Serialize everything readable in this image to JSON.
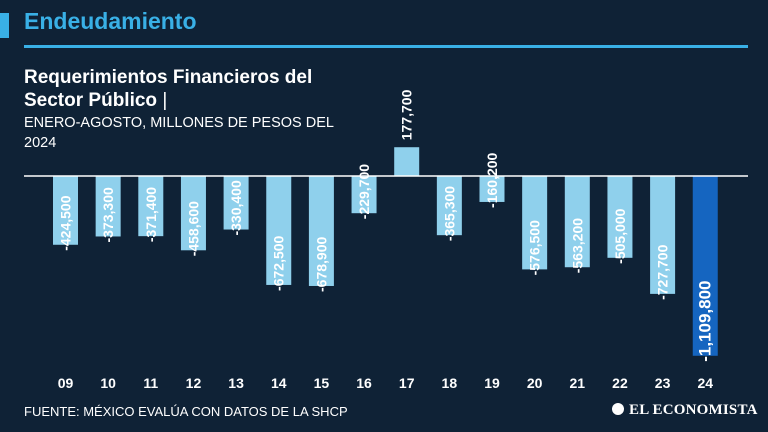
{
  "header": {
    "section_title": "Endeudamiento"
  },
  "chart_data": {
    "type": "bar",
    "title": "Requerimientos Financieros del Sector Público",
    "title_separator": "|",
    "subtitle": "ENERO-AGOSTO, MILLONES DE PESOS DEL 2024",
    "categories": [
      "09",
      "10",
      "11",
      "12",
      "13",
      "14",
      "15",
      "16",
      "17",
      "18",
      "19",
      "20",
      "21",
      "22",
      "23",
      "24"
    ],
    "values": [
      -424500,
      -373300,
      -371400,
      -458600,
      -330400,
      -672500,
      -678900,
      -229700,
      177700,
      -365300,
      -160200,
      -576500,
      -563200,
      -505000,
      -727700,
      -1109800
    ],
    "value_labels": [
      "-424,500",
      "-373,300",
      "-371,400",
      "-458,600",
      "-330,400",
      "-672,500",
      "-678,900",
      "-229,700",
      "177,700",
      "-365,300",
      "-160,200",
      "-576,500",
      "-563,200",
      "-505,000",
      "-727,700",
      "-1,109,800"
    ],
    "highlight_category": "24",
    "colors": {
      "bar": "#8fd0ec",
      "highlight": "#1565c0",
      "baseline": "#ffffff",
      "label": "#ffffff"
    },
    "grid": false
  },
  "footer": {
    "source": "FUENTE: MÉXICO EVALÚA CON DATOS DE LA SHCP",
    "logo": "EL ECONOMISTA"
  }
}
